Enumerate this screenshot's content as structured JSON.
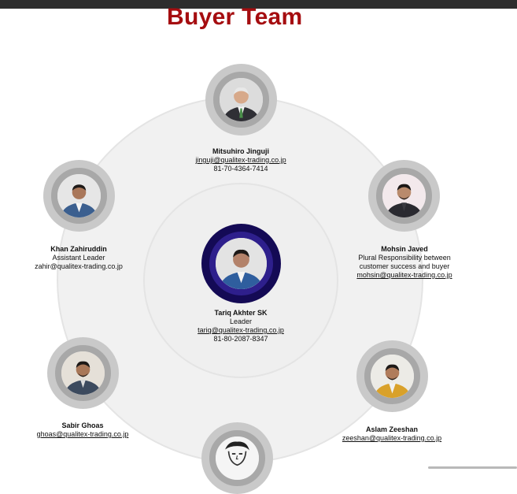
{
  "page": {
    "title": "Buyer Team"
  },
  "members": {
    "leader": {
      "name": "Tariq Akhter SK",
      "role": "Leader",
      "email": "tariq@qualitex-trading.co.jp",
      "phone": "81-80-2087-8347"
    },
    "top": {
      "name": "Mitsuhiro Jinguji",
      "email": "jinguji@qualitex-trading.co.jp",
      "phone": "81-70-4364-7414"
    },
    "left_upper": {
      "name": "Khan Zahiruddin",
      "role": "Assistant Leader",
      "email": "zahir@qualitex-trading.co.jp"
    },
    "right_upper": {
      "name": "Mohsin Javed",
      "role_line1": "Plural Responsibility between",
      "role_line2": "customer success and buyer",
      "email": "mohsin@qualitex-trading.co.jp"
    },
    "left_lower": {
      "name": "Sabir Ghoas",
      "email": "ghoas@qualitex-trading.co.jp"
    },
    "right_lower": {
      "name": "Aslam Zeeshan",
      "email": "zeeshan@qualitex-trading.co.jp"
    }
  },
  "colors": {
    "title": "#a50d10",
    "ring_bg": "#f1f1f1",
    "avatar_ring": "#c9c9c9",
    "leader_ring": "#140a55"
  }
}
